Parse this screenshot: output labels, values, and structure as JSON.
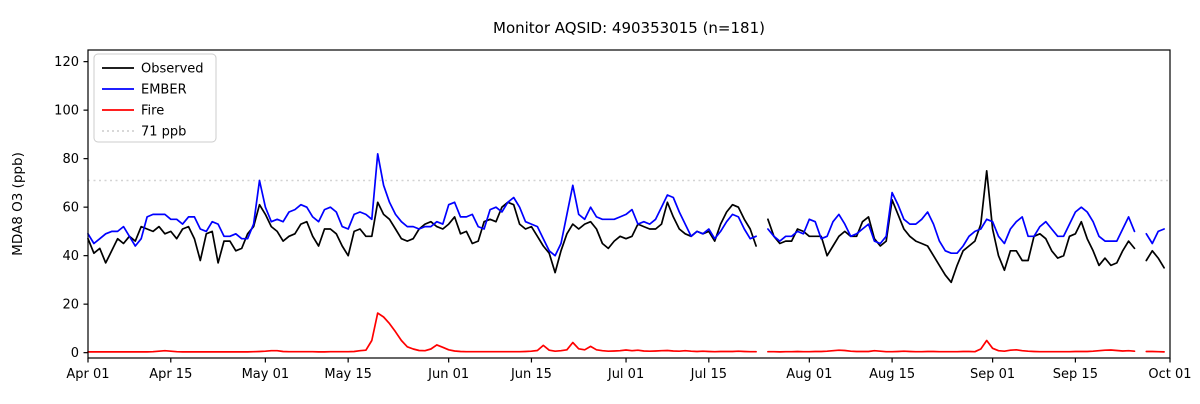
{
  "title": "Monitor AQSID: 490353015 (n=181)",
  "chart_data": {
    "type": "line",
    "title": "Monitor AQSID: 490353015 (n=181)",
    "xlabel": "",
    "ylabel": "MDA8 O3 (ppb)",
    "ylim": [
      -2.2,
      124.8
    ],
    "yticks": [
      0,
      20,
      40,
      60,
      80,
      100,
      120
    ],
    "x_start_label": "Apr 01",
    "x_range_days": 183,
    "x_tick_days": [
      0,
      14,
      30,
      44,
      61,
      75,
      91,
      105,
      122,
      136,
      153,
      167,
      183
    ],
    "x_tick_labels": [
      "Apr 01",
      "Apr 15",
      "May 01",
      "May 15",
      "Jun 01",
      "Jun 15",
      "Jul 01",
      "Jul 15",
      "Aug 01",
      "Aug 15",
      "Sep 01",
      "Sep 15",
      "Oct 01"
    ],
    "grid": false,
    "legend_position": "upper-left",
    "threshold": {
      "value": 71,
      "label": "71 ppb",
      "color": "#d3d3d3",
      "style": "dotted"
    },
    "colors": {
      "observed": "#000000",
      "ember": "#0000ff",
      "fire": "#ff0000"
    },
    "missing_day_indices": [
      114,
      178
    ],
    "series": [
      {
        "name": "Observed",
        "color": "#000000",
        "values": [
          47,
          41,
          43,
          37,
          42,
          47,
          45,
          48,
          46,
          52,
          51,
          50,
          52,
          49,
          50,
          47,
          51,
          52,
          47,
          38,
          49,
          50,
          37,
          46,
          46,
          42,
          43,
          49,
          52,
          61,
          57,
          52,
          50,
          46,
          48,
          49,
          53,
          54,
          48,
          44,
          51,
          51,
          49,
          44,
          40,
          50,
          51,
          48,
          48,
          62,
          57,
          55,
          51,
          47,
          46,
          47,
          51,
          53,
          54,
          52,
          51,
          53,
          56,
          49,
          50,
          45,
          46,
          54,
          55,
          54,
          60,
          62,
          61,
          53,
          51,
          52,
          48,
          44,
          41,
          33,
          42,
          49,
          53,
          51,
          53,
          54,
          51,
          45,
          43,
          46,
          48,
          47,
          48,
          53,
          52,
          51,
          51,
          53,
          62,
          56,
          51,
          49,
          48,
          50,
          49,
          50,
          46,
          53,
          58,
          61,
          60,
          55,
          51,
          44,
          null,
          55,
          48,
          45,
          46,
          46,
          51,
          50,
          48,
          48,
          48,
          40,
          44,
          48,
          50,
          48,
          48,
          54,
          56,
          47,
          44,
          46,
          63,
          57,
          51,
          48,
          46,
          45,
          44,
          40,
          36,
          32,
          29,
          36,
          42,
          44,
          46,
          53,
          75,
          51,
          40,
          34,
          42,
          42,
          38,
          38,
          48,
          49,
          47,
          42,
          39,
          40,
          48,
          49,
          54,
          47,
          42,
          36,
          39,
          36,
          37,
          42,
          46,
          43,
          null,
          38,
          42,
          39,
          35
        ]
      },
      {
        "name": "EMBER",
        "color": "#0000ff",
        "values": [
          49,
          45,
          47,
          49,
          50,
          50,
          52,
          48,
          44,
          47,
          56,
          57,
          57,
          57,
          55,
          55,
          53,
          56,
          56,
          51,
          50,
          54,
          53,
          48,
          48,
          49,
          47,
          47,
          53,
          71,
          60,
          54,
          55,
          54,
          58,
          59,
          61,
          60,
          56,
          54,
          59,
          60,
          58,
          52,
          51,
          57,
          58,
          57,
          55,
          82,
          69,
          62,
          57,
          54,
          52,
          52,
          51,
          52,
          52,
          54,
          53,
          61,
          62,
          56,
          56,
          57,
          52,
          51,
          59,
          60,
          58,
          62,
          64,
          60,
          54,
          53,
          52,
          47,
          42,
          40,
          45,
          57,
          69,
          57,
          55,
          60,
          56,
          55,
          55,
          55,
          56,
          57,
          59,
          53,
          54,
          53,
          55,
          60,
          65,
          64,
          58,
          53,
          48,
          50,
          49,
          51,
          47,
          50,
          54,
          57,
          56,
          51,
          47,
          48,
          null,
          51,
          48,
          46,
          48,
          48,
          50,
          49,
          55,
          54,
          47,
          48,
          54,
          57,
          53,
          48,
          49,
          51,
          53,
          46,
          45,
          48,
          66,
          61,
          55,
          53,
          53,
          55,
          58,
          53,
          46,
          42,
          41,
          41,
          44,
          48,
          50,
          51,
          55,
          54,
          48,
          45,
          51,
          54,
          56,
          48,
          48,
          52,
          54,
          51,
          48,
          48,
          53,
          58,
          60,
          58,
          54,
          48,
          46,
          46,
          46,
          51,
          56,
          50,
          null,
          49,
          45,
          50,
          51
        ]
      },
      {
        "name": "Fire",
        "color": "#ff0000",
        "values": [
          0.3,
          0.3,
          0.3,
          0.3,
          0.3,
          0.3,
          0.3,
          0.3,
          0.3,
          0.3,
          0.3,
          0.4,
          0.6,
          0.8,
          0.6,
          0.4,
          0.3,
          0.3,
          0.3,
          0.3,
          0.3,
          0.3,
          0.3,
          0.3,
          0.3,
          0.3,
          0.3,
          0.3,
          0.4,
          0.5,
          0.6,
          0.8,
          0.8,
          0.5,
          0.4,
          0.4,
          0.4,
          0.4,
          0.4,
          0.3,
          0.3,
          0.4,
          0.4,
          0.4,
          0.4,
          0.5,
          0.8,
          1.0,
          5.0,
          16.3,
          14.7,
          12.0,
          8.6,
          5.0,
          2.4,
          1.5,
          0.9,
          0.8,
          1.5,
          3.2,
          2.2,
          1.2,
          0.7,
          0.5,
          0.4,
          0.4,
          0.4,
          0.4,
          0.4,
          0.4,
          0.4,
          0.4,
          0.4,
          0.4,
          0.5,
          0.6,
          0.9,
          3.0,
          1.0,
          0.6,
          0.8,
          1.2,
          4.2,
          1.6,
          1.2,
          2.6,
          1.2,
          0.8,
          0.6,
          0.7,
          0.8,
          1.1,
          0.8,
          1.0,
          0.7,
          0.6,
          0.7,
          0.8,
          0.9,
          0.7,
          0.6,
          0.8,
          0.6,
          0.5,
          0.6,
          0.5,
          0.4,
          0.5,
          0.5,
          0.5,
          0.6,
          0.5,
          0.4,
          0.4,
          null,
          0.4,
          0.4,
          0.3,
          0.4,
          0.4,
          0.5,
          0.4,
          0.4,
          0.5,
          0.5,
          0.6,
          0.8,
          1.0,
          0.9,
          0.6,
          0.5,
          0.5,
          0.5,
          0.8,
          0.6,
          0.4,
          0.4,
          0.5,
          0.6,
          0.5,
          0.4,
          0.4,
          0.5,
          0.5,
          0.4,
          0.4,
          0.4,
          0.4,
          0.5,
          0.5,
          0.4,
          1.5,
          5.0,
          1.8,
          0.8,
          0.6,
          1.0,
          1.2,
          0.8,
          0.6,
          0.5,
          0.4,
          0.4,
          0.4,
          0.4,
          0.4,
          0.4,
          0.5,
          0.5,
          0.5,
          0.6,
          0.8,
          1.0,
          1.1,
          0.9,
          0.7,
          0.8,
          0.6,
          null,
          0.5,
          0.5,
          0.4,
          0.3
        ]
      }
    ],
    "legend_entries": [
      "Observed",
      "EMBER",
      "Fire",
      "71 ppb"
    ]
  }
}
